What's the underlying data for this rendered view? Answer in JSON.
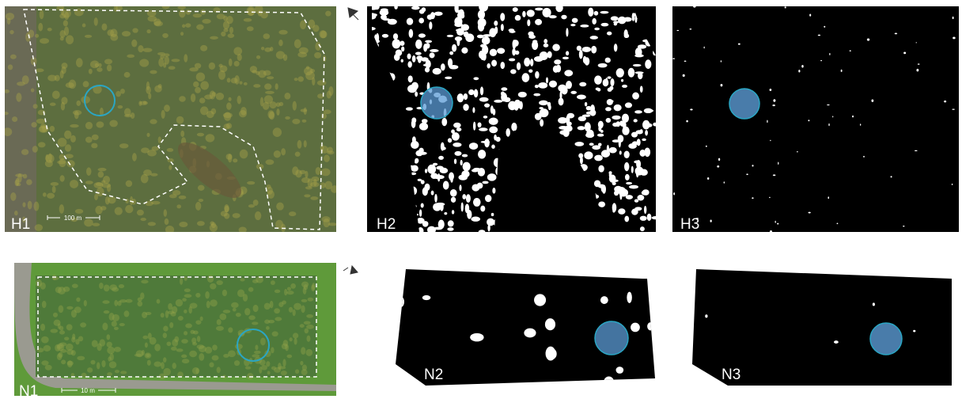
{
  "panels": [
    {
      "label": "H1",
      "scale": "100 m"
    },
    {
      "label": "H2"
    },
    {
      "label": "H3"
    },
    {
      "label": "N1",
      "scale": "10 m"
    },
    {
      "label": "N2"
    },
    {
      "label": "N3"
    }
  ]
}
